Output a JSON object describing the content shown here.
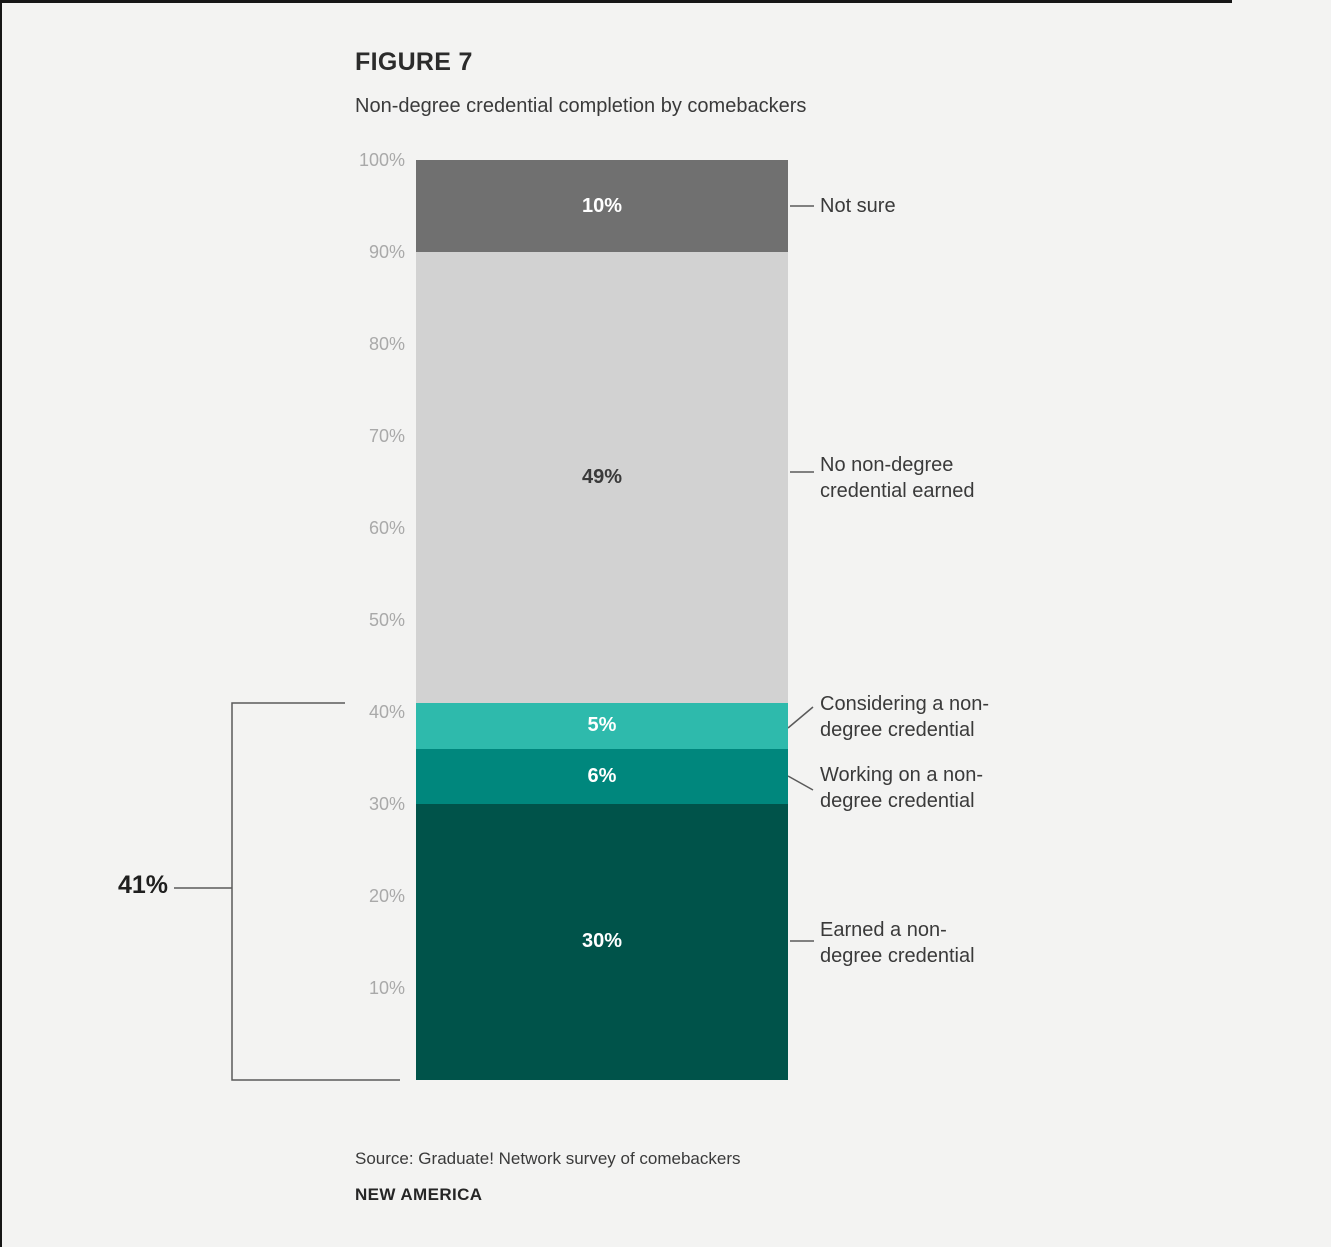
{
  "figure": {
    "label": "FIGURE 7",
    "title": "Non-degree credential completion by comebackers",
    "source": "Source: Graduate! Network survey of comebackers",
    "org": "NEW AMERICA"
  },
  "chart_data": {
    "type": "bar",
    "variant": "single-column-stacked",
    "title": "Non-degree credential completion by comebackers",
    "unit": "%",
    "ylim": [
      0,
      100
    ],
    "y_ticks": [
      "100%",
      "90%",
      "80%",
      "70%",
      "60%",
      "50%",
      "40%",
      "30%",
      "20%",
      "10%"
    ],
    "grid": false,
    "legend_position": "right-annotations",
    "segments": [
      {
        "label": "Not sure",
        "value": 10,
        "display": "10%",
        "color": "#707070",
        "label_color": "#ffffff"
      },
      {
        "label": "No non-degree credential earned",
        "value": 49,
        "display": "49%",
        "color": "#d2d2d2",
        "label_color": "#3a3a3a"
      },
      {
        "label": "Considering a non-degree credential",
        "value": 5,
        "display": "5%",
        "color": "#2ebaac",
        "label_color": "#ffffff"
      },
      {
        "label": "Working on a non-degree credential",
        "value": 6,
        "display": "6%",
        "color": "#00877d",
        "label_color": "#ffffff"
      },
      {
        "label": "Earned a non-degree credential",
        "value": 30,
        "display": "30%",
        "color": "#00534a",
        "label_color": "#ffffff"
      }
    ],
    "annotations": [
      {
        "lines": [
          "Not sure"
        ]
      },
      {
        "lines": [
          "No non-degree",
          "credential earned"
        ]
      },
      {
        "lines": [
          "Considering a non-",
          "degree credential"
        ]
      },
      {
        "lines": [
          "Working on a non-",
          "degree credential"
        ]
      },
      {
        "lines": [
          "Earned a non-",
          "degree credential"
        ]
      }
    ],
    "bracket": {
      "label": "41%",
      "value": 41,
      "covers": [
        "Considering a non-degree credential",
        "Working on a non-degree credential",
        "Earned a non-degree credential"
      ]
    }
  }
}
